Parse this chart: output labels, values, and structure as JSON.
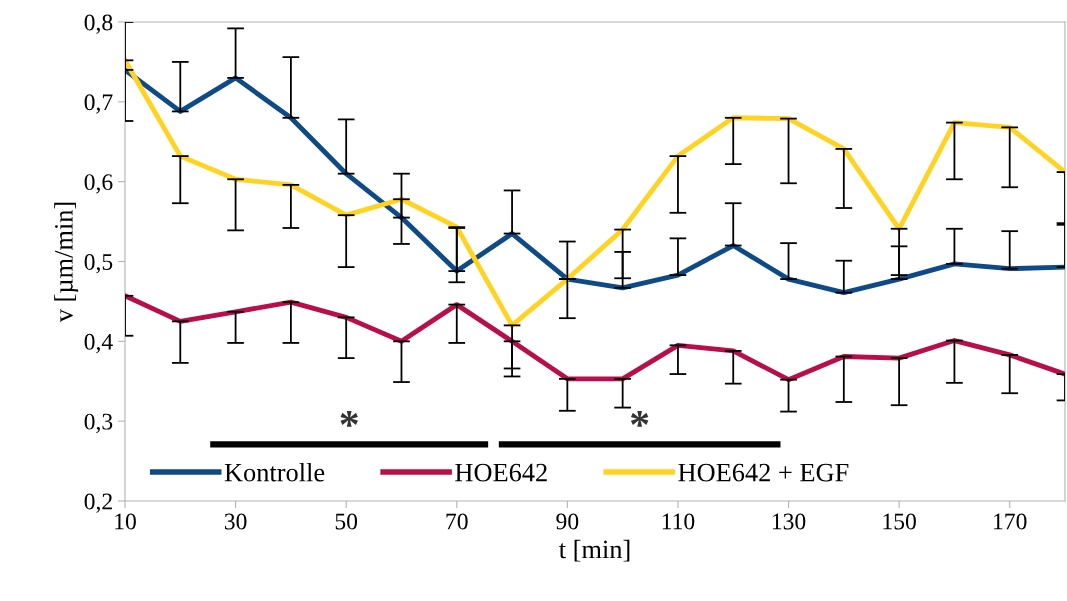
{
  "chart_data": {
    "type": "line",
    "xlabel": "t [min]",
    "ylabel": "v [µm/min]",
    "x": [
      10,
      20,
      30,
      40,
      50,
      60,
      70,
      80,
      90,
      100,
      110,
      120,
      130,
      140,
      150,
      160,
      170,
      180
    ],
    "xlim": [
      10,
      180
    ],
    "xticks": [
      10,
      30,
      50,
      70,
      90,
      110,
      130,
      150,
      170
    ],
    "ylim": [
      0.2,
      0.8
    ],
    "yticks": [
      {
        "value": 0.2,
        "label": "0,2"
      },
      {
        "value": 0.3,
        "label": "0,3"
      },
      {
        "value": 0.4,
        "label": "0,4"
      },
      {
        "value": 0.5,
        "label": "0,5"
      },
      {
        "value": 0.6,
        "label": "0,6"
      },
      {
        "value": 0.7,
        "label": "0,7"
      },
      {
        "value": 0.8,
        "label": "0,8"
      }
    ],
    "grid": false,
    "legend": "bottom",
    "marker": "none",
    "line_style": "solid",
    "series": [
      {
        "name": "Kontrolle",
        "color": "#0e4a86",
        "values": [
          0.74,
          0.688,
          0.73,
          0.68,
          0.61,
          0.555,
          0.488,
          0.535,
          0.478,
          0.467,
          0.483,
          0.52,
          0.478,
          0.461,
          0.478,
          0.497,
          0.491,
          0.493
        ],
        "errors": [
          [
            0.74,
            0.8
          ],
          [
            0.688,
            0.75
          ],
          [
            0.73,
            0.792
          ],
          [
            0.68,
            0.756
          ],
          [
            0.61,
            0.678
          ],
          [
            0.555,
            0.61
          ],
          [
            0.488,
            0.542
          ],
          [
            0.535,
            0.589
          ],
          [
            0.478,
            0.525
          ],
          [
            0.467,
            0.512
          ],
          [
            0.483,
            0.529
          ],
          [
            0.52,
            0.573
          ],
          [
            0.478,
            0.523
          ],
          [
            0.461,
            0.501
          ],
          [
            0.478,
            0.519
          ],
          [
            0.497,
            0.541
          ],
          [
            0.491,
            0.538
          ],
          [
            0.493,
            0.548
          ]
        ]
      },
      {
        "name": "HOE642",
        "color": "#b80f4b",
        "values": [
          0.457,
          0.425,
          0.437,
          0.449,
          0.43,
          0.4,
          0.446,
          0.4,
          0.353,
          0.353,
          0.395,
          0.388,
          0.352,
          0.381,
          0.379,
          0.401,
          0.383,
          0.359
        ],
        "errors": [
          [
            0.407,
            0.457
          ],
          [
            0.373,
            0.425
          ],
          [
            0.398,
            0.437
          ],
          [
            0.398,
            0.449
          ],
          [
            0.379,
            0.43
          ],
          [
            0.349,
            0.4
          ],
          [
            0.398,
            0.446
          ],
          [
            0.356,
            0.4
          ],
          [
            0.313,
            0.353
          ],
          [
            0.317,
            0.353
          ],
          [
            0.359,
            0.395
          ],
          [
            0.347,
            0.388
          ],
          [
            0.312,
            0.352
          ],
          [
            0.324,
            0.381
          ],
          [
            0.32,
            0.379
          ],
          [
            0.348,
            0.401
          ],
          [
            0.335,
            0.383
          ],
          [
            0.326,
            0.359
          ]
        ]
      },
      {
        "name": "HOE642 + EGF",
        "color": "#ffd320",
        "values": [
          0.752,
          0.632,
          0.603,
          0.596,
          0.558,
          0.578,
          0.543,
          0.42,
          0.478,
          0.54,
          0.632,
          0.68,
          0.679,
          0.641,
          0.541,
          0.674,
          0.668,
          0.612
        ],
        "errors": [
          [
            0.676,
            0.752
          ],
          [
            0.573,
            0.632
          ],
          [
            0.539,
            0.603
          ],
          [
            0.542,
            0.596
          ],
          [
            0.493,
            0.558
          ],
          [
            0.522,
            0.578
          ],
          [
            0.474,
            0.543
          ],
          [
            0.366,
            0.42
          ],
          [
            0.429,
            0.478
          ],
          [
            0.479,
            0.54
          ],
          [
            0.561,
            0.632
          ],
          [
            0.622,
            0.68
          ],
          [
            0.598,
            0.679
          ],
          [
            0.567,
            0.641
          ],
          [
            0.483,
            0.541
          ],
          [
            0.603,
            0.674
          ],
          [
            0.593,
            0.668
          ],
          [
            0.546,
            0.612
          ]
        ]
      }
    ],
    "annotations": [
      "*",
      "*"
    ]
  }
}
